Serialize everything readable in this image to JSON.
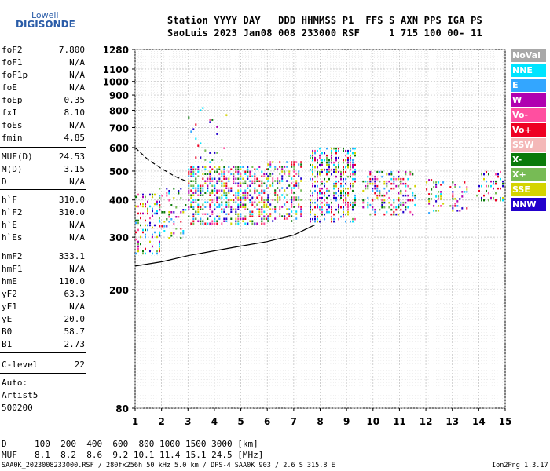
{
  "logo": {
    "line1": "Lowell",
    "line2": "DIGISONDE"
  },
  "header": {
    "line1": "Station YYYY DAY   DDD HHMMSS P1  FFS S AXN PPS IGA PS",
    "line2": "SaoLuis 2023 Jan08 008 233000 RSF     1 715 100 00- 11"
  },
  "params": [
    {
      "key": "foF2",
      "value": "7.800"
    },
    {
      "key": "foF1",
      "value": "N/A"
    },
    {
      "key": "foF1p",
      "value": "N/A"
    },
    {
      "key": "foE",
      "value": "N/A"
    },
    {
      "key": "foEp",
      "value": "0.35"
    },
    {
      "key": "fxI",
      "value": "8.10"
    },
    {
      "key": "foEs",
      "value": "N/A"
    },
    {
      "key": "fmin",
      "value": "4.85"
    },
    {
      "key": "MUF(D)",
      "value": "24.53"
    },
    {
      "key": "M(D)",
      "value": "3.15"
    },
    {
      "key": "D",
      "value": "N/A"
    },
    {
      "key": "h`F",
      "value": "310.0"
    },
    {
      "key": "h`F2",
      "value": "310.0"
    },
    {
      "key": "h`E",
      "value": "N/A"
    },
    {
      "key": "h`Es",
      "value": "N/A"
    },
    {
      "key": "hmF2",
      "value": "333.1"
    },
    {
      "key": "hmF1",
      "value": "N/A"
    },
    {
      "key": "hmE",
      "value": "110.0"
    },
    {
      "key": "yF2",
      "value": "63.3"
    },
    {
      "key": "yF1",
      "value": "N/A"
    },
    {
      "key": "yE",
      "value": "20.0"
    },
    {
      "key": "B0",
      "value": "58.7"
    },
    {
      "key": "B1",
      "value": "2.73"
    },
    {
      "key": "C-level",
      "value": "22"
    }
  ],
  "auto": {
    "line1": "Auto:",
    "line2": "Artist5",
    "line3": "500200"
  },
  "legend": [
    {
      "label": "NoVal",
      "color": "#a8a8a8"
    },
    {
      "label": "NNE",
      "color": "#00e4ff"
    },
    {
      "label": "E",
      "color": "#33a6ff"
    },
    {
      "label": "W",
      "color": "#b000b0"
    },
    {
      "label": "Vo-",
      "color": "#ff4fa0"
    },
    {
      "label": "Vo+",
      "color": "#ee0022"
    },
    {
      "label": "SSW",
      "color": "#f4b8b8"
    },
    {
      "label": "X-",
      "color": "#0a7a0a"
    },
    {
      "label": "X+",
      "color": "#77bb55"
    },
    {
      "label": "SSE",
      "color": "#d4d400"
    },
    {
      "label": "NNW",
      "color": "#2200cc"
    }
  ],
  "muf_table": {
    "d_label": "D",
    "d_values": "100  200  400  600  800 1000 1500 3000 [km]",
    "muf_label": "MUF",
    "muf_values": "8.1  8.2  8.6  9.2 10.1 11.4 15.1 24.5 [MHz]"
  },
  "footer": {
    "left": "SAA0K_2023008233000.RSF / 280fx256h 50 kHz 5.0 km / DPS-4 SAA0K 903 / 2.6 S 315.8 E",
    "right": "Ion2Png 1.3.17"
  },
  "chart_data": {
    "type": "scatter",
    "title": "",
    "xlabel": "",
    "ylabel": "",
    "xlim": [
      1,
      15
    ],
    "ylim": [
      80,
      1280
    ],
    "y_scale": "log",
    "grid": true,
    "legend_placement": "right",
    "x_ticks": [
      1,
      2,
      3,
      4,
      5,
      6,
      7,
      8,
      9,
      10,
      11,
      12,
      13,
      14,
      15
    ],
    "y_ticks_major": [
      80,
      200,
      300,
      400,
      500,
      600,
      700,
      800,
      900,
      1000,
      1100,
      1280
    ],
    "clusters": [
      {
        "f": [
          1.0,
          1.9
        ],
        "h": [
          265,
          420
        ],
        "density": 0.55
      },
      {
        "f": [
          1.9,
          2.9
        ],
        "h": [
          300,
          440
        ],
        "density": 0.4
      },
      {
        "f": [
          3.0,
          6.0
        ],
        "h": [
          330,
          520
        ],
        "density": 0.85
      },
      {
        "f": [
          3.0,
          4.5
        ],
        "h": [
          520,
          820
        ],
        "density": 0.12
      },
      {
        "f": [
          6.0,
          7.3
        ],
        "h": [
          340,
          540
        ],
        "density": 0.7
      },
      {
        "f": [
          7.6,
          9.3
        ],
        "h": [
          340,
          600
        ],
        "density": 0.8
      },
      {
        "f": [
          9.6,
          11.6
        ],
        "h": [
          360,
          500
        ],
        "density": 0.55
      },
      {
        "f": [
          12.0,
          12.7
        ],
        "h": [
          360,
          470
        ],
        "density": 0.5
      },
      {
        "f": [
          12.9,
          13.6
        ],
        "h": [
          370,
          470
        ],
        "density": 0.4
      },
      {
        "f": [
          13.9,
          14.9
        ],
        "h": [
          400,
          500
        ],
        "density": 0.5
      }
    ],
    "series": [
      {
        "type": "profile_solid",
        "x": [
          1.0,
          2.0,
          3.0,
          4.0,
          5.0,
          6.0,
          7.0,
          7.8
        ],
        "y": [
          240,
          248,
          260,
          270,
          280,
          290,
          305,
          330
        ]
      },
      {
        "type": "profile_dashed",
        "x": [
          1.0,
          1.5,
          2.0,
          2.5,
          3.0
        ],
        "y": [
          600,
          545,
          510,
          480,
          460
        ]
      }
    ]
  }
}
